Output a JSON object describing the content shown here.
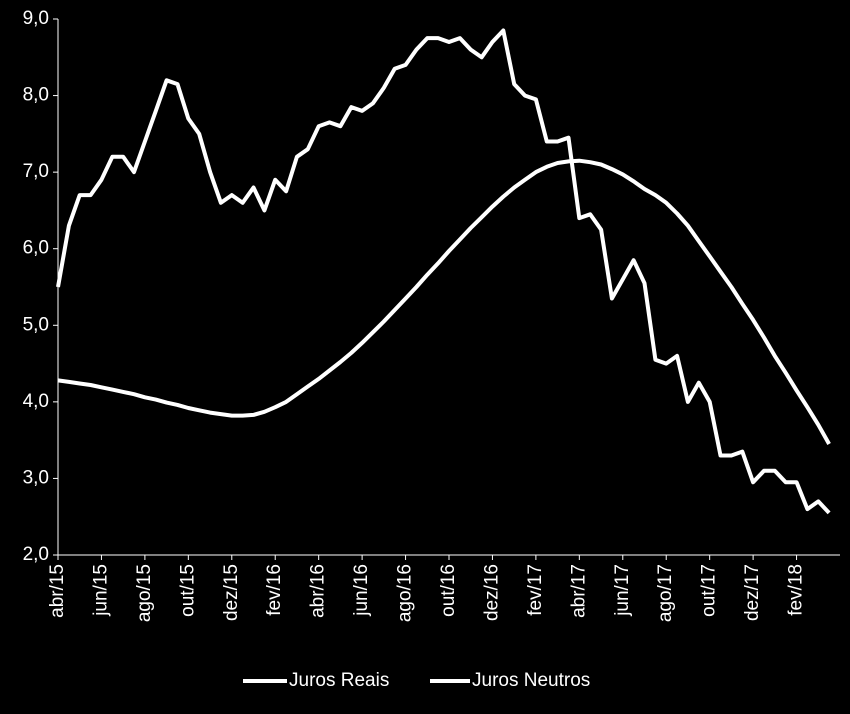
{
  "chart_data": {
    "type": "line",
    "categories": [
      "abr/15",
      null,
      null,
      null,
      "jun/15",
      null,
      null,
      null,
      "ago/15",
      null,
      null,
      null,
      "out/15",
      null,
      null,
      null,
      "dez/15",
      null,
      null,
      null,
      "fev/16",
      null,
      null,
      null,
      "abr/16",
      null,
      null,
      null,
      "jun/16",
      null,
      null,
      null,
      "ago/16",
      null,
      null,
      null,
      "out/16",
      null,
      null,
      null,
      "dez/16",
      null,
      null,
      null,
      "fev/17",
      null,
      null,
      null,
      "abr/17",
      null,
      null,
      null,
      "jun/17",
      null,
      null,
      null,
      "ago/17",
      null,
      null,
      null,
      "out/17",
      null,
      null,
      null,
      "dez/17",
      null,
      null,
      null,
      "fev/18",
      null,
      null,
      null
    ],
    "series": [
      {
        "name": "Juros Reais",
        "color": "#ffffff",
        "values": [
          5.5,
          6.3,
          6.7,
          6.7,
          6.9,
          7.2,
          7.2,
          7.0,
          7.4,
          7.8,
          8.2,
          8.15,
          7.7,
          7.5,
          7.0,
          6.6,
          6.7,
          6.6,
          6.8,
          6.5,
          6.9,
          6.75,
          7.2,
          7.3,
          7.6,
          7.65,
          7.6,
          7.85,
          7.8,
          7.9,
          8.1,
          8.35,
          8.4,
          8.6,
          8.75,
          8.75,
          8.7,
          8.75,
          8.6,
          8.5,
          8.7,
          8.85,
          8.15,
          8.0,
          7.95,
          7.4,
          7.4,
          7.45,
          6.4,
          6.45,
          6.25,
          5.35,
          5.6,
          5.85,
          5.55,
          4.55,
          4.5,
          4.6,
          4.0,
          4.25,
          4.0,
          3.3,
          3.3,
          3.35,
          2.95,
          3.1,
          3.1,
          2.95,
          2.95,
          2.6,
          2.7,
          2.55
        ]
      },
      {
        "name": "Juros Neutros",
        "color": "#ffffff",
        "values": [
          4.28,
          4.26,
          4.24,
          4.22,
          4.19,
          4.16,
          4.13,
          4.1,
          4.06,
          4.03,
          3.99,
          3.96,
          3.92,
          3.89,
          3.86,
          3.84,
          3.82,
          3.82,
          3.83,
          3.87,
          3.93,
          4.0,
          4.1,
          4.2,
          4.3,
          4.41,
          4.52,
          4.64,
          4.77,
          4.91,
          5.05,
          5.2,
          5.35,
          5.5,
          5.66,
          5.81,
          5.97,
          6.12,
          6.27,
          6.41,
          6.55,
          6.68,
          6.8,
          6.9,
          7.0,
          7.07,
          7.12,
          7.14,
          7.15,
          7.13,
          7.1,
          7.04,
          6.97,
          6.88,
          6.78,
          6.7,
          6.6,
          6.46,
          6.3,
          6.1,
          5.9,
          5.7,
          5.5,
          5.28,
          5.07,
          4.84,
          4.6,
          4.38,
          4.15,
          3.93,
          3.7,
          3.45
        ]
      }
    ],
    "ylim": [
      2,
      9
    ],
    "yticks": [
      {
        "value": 2,
        "label": "2,0"
      },
      {
        "value": 3,
        "label": "3,0"
      },
      {
        "value": 4,
        "label": "4,0"
      },
      {
        "value": 5,
        "label": "5,0"
      },
      {
        "value": 6,
        "label": "6,0"
      },
      {
        "value": 7,
        "label": "7,0"
      },
      {
        "value": 8,
        "label": "8,0"
      },
      {
        "value": 9,
        "label": "9,0"
      }
    ],
    "legend": "bottom"
  }
}
